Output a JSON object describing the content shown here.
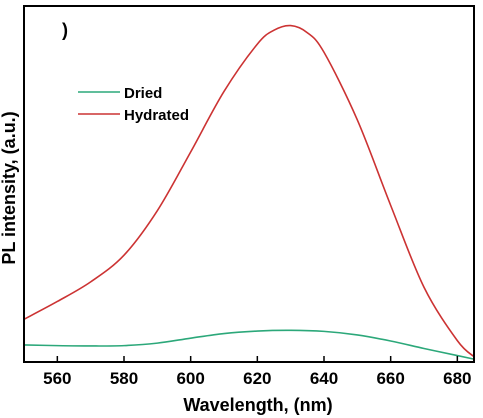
{
  "chart_data": {
    "type": "line",
    "panel_label": ")",
    "xlabel": "Wavelength, (nm)",
    "ylabel": "PL intensity, (a.u.)",
    "xlim": [
      550,
      685
    ],
    "ylim": [
      0,
      1
    ],
    "x_ticks": [
      560,
      580,
      600,
      620,
      640,
      660,
      680
    ],
    "y_ticks_shown": false,
    "grid": false,
    "legend_position": "upper-left",
    "series": [
      {
        "name": "Dried",
        "color": "#2ca87a",
        "x": [
          550,
          560,
          570,
          580,
          590,
          600,
          610,
          620,
          630,
          640,
          650,
          660,
          670,
          680,
          685
        ],
        "y": [
          0.048,
          0.046,
          0.045,
          0.046,
          0.053,
          0.067,
          0.08,
          0.087,
          0.089,
          0.086,
          0.076,
          0.059,
          0.038,
          0.018,
          0.008
        ]
      },
      {
        "name": "Hydrated",
        "color": "#cc3333",
        "x": [
          550,
          560,
          570,
          580,
          590,
          600,
          610,
          620,
          625,
          630,
          635,
          640,
          650,
          660,
          670,
          680,
          685
        ],
        "y": [
          0.12,
          0.17,
          0.225,
          0.3,
          0.425,
          0.59,
          0.76,
          0.893,
          0.932,
          0.945,
          0.925,
          0.87,
          0.68,
          0.44,
          0.21,
          0.06,
          0.015
        ]
      }
    ]
  }
}
